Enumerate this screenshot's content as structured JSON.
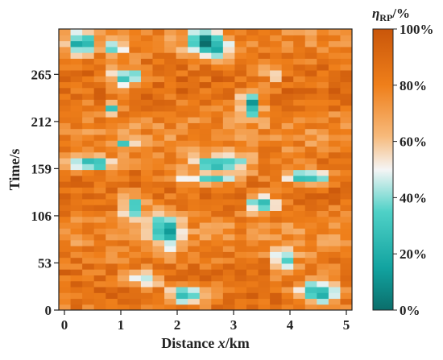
{
  "chart_data": {
    "type": "heatmap",
    "title": "",
    "xlabel_parts": [
      "Distance ",
      "x",
      "/km"
    ],
    "ylabel": "Time/s",
    "xlim": [
      -0.1,
      5.1
    ],
    "ylim": [
      0,
      316
    ],
    "x_ticks": [
      0,
      1,
      2,
      3,
      4,
      5
    ],
    "x_tick_labels": [
      "0",
      "1",
      "2",
      "3",
      "4",
      "5"
    ],
    "y_ticks": [
      0,
      53,
      106,
      159,
      212,
      265
    ],
    "y_tick_labels": [
      "0",
      "53",
      "106",
      "159",
      "212",
      "265"
    ],
    "colorbar": {
      "title_parts": [
        "η",
        "RP",
        "/%"
      ],
      "range": [
        0,
        100
      ],
      "ticks": [
        0,
        20,
        40,
        60,
        80,
        100
      ],
      "tick_labels": [
        "0%",
        "20%",
        "40%",
        "60%",
        "80%",
        "100%"
      ],
      "colormap": [
        {
          "v": 0,
          "color": "#0b6e6b"
        },
        {
          "v": 0.15,
          "color": "#12a3a0"
        },
        {
          "v": 0.35,
          "color": "#4fd1c7"
        },
        {
          "v": 0.5,
          "color": "#f5f5f5"
        },
        {
          "v": 0.62,
          "color": "#f7b97a"
        },
        {
          "v": 0.8,
          "color": "#ef7f1a"
        },
        {
          "v": 1,
          "color": "#c9560a"
        }
      ]
    },
    "grid": false,
    "x_cells": 25,
    "y_cells": 48,
    "value_pattern": {
      "baseline_percent": 82,
      "low_efficiency_zones": [
        {
          "x": 0.3,
          "t": 300,
          "rx": 0.25,
          "rt": 12,
          "depth": 60
        },
        {
          "x": 0.9,
          "t": 295,
          "rx": 0.15,
          "rt": 8,
          "depth": 55
        },
        {
          "x": 1.1,
          "t": 262,
          "rx": 0.3,
          "rt": 10,
          "depth": 70
        },
        {
          "x": 0.85,
          "t": 228,
          "rx": 0.12,
          "rt": 8,
          "depth": 50
        },
        {
          "x": 1.1,
          "t": 188,
          "rx": 0.2,
          "rt": 6,
          "depth": 45
        },
        {
          "x": 0.45,
          "t": 165,
          "rx": 0.4,
          "rt": 8,
          "depth": 65
        },
        {
          "x": 1.2,
          "t": 115,
          "rx": 0.2,
          "rt": 14,
          "depth": 60
        },
        {
          "x": 1.8,
          "t": 90,
          "rx": 0.25,
          "rt": 20,
          "depth": 60
        },
        {
          "x": 1.4,
          "t": 35,
          "rx": 0.3,
          "rt": 8,
          "depth": 55
        },
        {
          "x": 2.2,
          "t": 18,
          "rx": 0.35,
          "rt": 10,
          "depth": 65
        },
        {
          "x": 2.5,
          "t": 300,
          "rx": 0.3,
          "rt": 14,
          "depth": 80
        },
        {
          "x": 2.8,
          "t": 290,
          "rx": 0.12,
          "rt": 10,
          "depth": 60
        },
        {
          "x": 3.3,
          "t": 232,
          "rx": 0.18,
          "rt": 16,
          "depth": 70
        },
        {
          "x": 2.8,
          "t": 165,
          "rx": 0.5,
          "rt": 10,
          "depth": 65
        },
        {
          "x": 2.5,
          "t": 148,
          "rx": 0.55,
          "rt": 6,
          "depth": 50
        },
        {
          "x": 3.5,
          "t": 120,
          "rx": 0.25,
          "rt": 10,
          "depth": 60
        },
        {
          "x": 3.9,
          "t": 55,
          "rx": 0.2,
          "rt": 14,
          "depth": 60
        },
        {
          "x": 4.3,
          "t": 150,
          "rx": 0.4,
          "rt": 8,
          "depth": 65
        },
        {
          "x": 4.5,
          "t": 22,
          "rx": 0.35,
          "rt": 14,
          "depth": 70
        },
        {
          "x": 3.7,
          "t": 265,
          "rx": 0.15,
          "rt": 10,
          "depth": 45
        }
      ],
      "note": ""
    }
  }
}
